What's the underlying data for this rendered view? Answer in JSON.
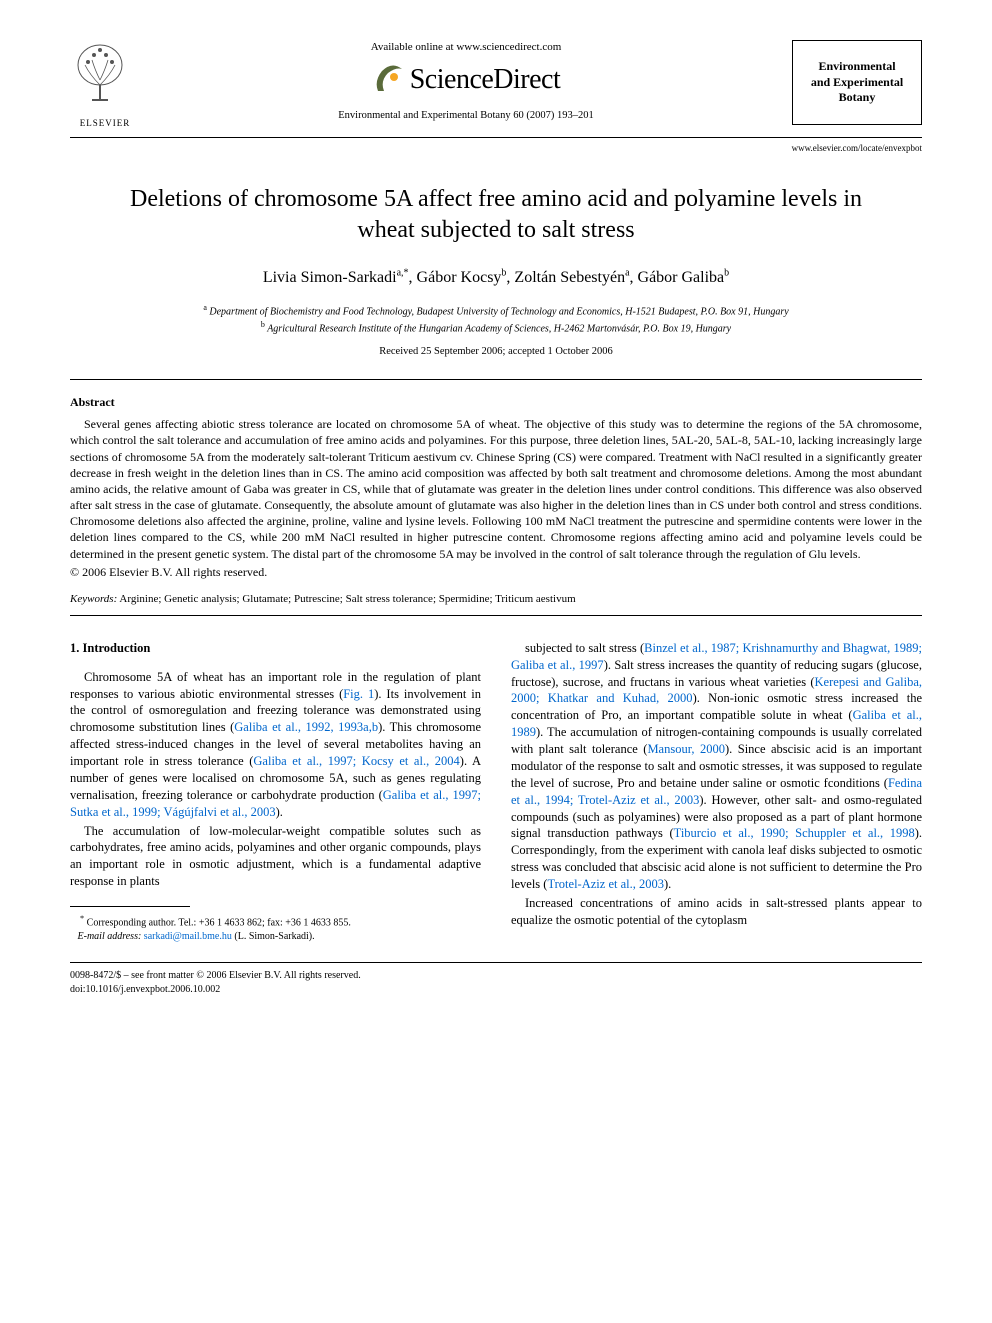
{
  "header": {
    "available_online": "Available online at www.sciencedirect.com",
    "brand": "ScienceDirect",
    "journal_ref": "Environmental and Experimental Botany 60 (2007) 193–201",
    "journal_box_line1": "Environmental",
    "journal_box_line2": "and Experimental",
    "journal_box_line3": "Botany",
    "journal_url": "www.elsevier.com/locate/envexpbot",
    "publisher": "ELSEVIER"
  },
  "article": {
    "title": "Deletions of chromosome 5A affect free amino acid and polyamine levels in wheat subjected to salt stress",
    "authors_html": "Livia Simon-Sarkadi<sup>a,*</sup>, Gábor Kocsy<sup>b</sup>, Zoltán Sebestyén<sup>a</sup>, Gábor Galiba<sup>b</sup>",
    "affil_a": "Department of Biochemistry and Food Technology, Budapest University of Technology and Economics, H-1521 Budapest, P.O. Box 91, Hungary",
    "affil_b": "Agricultural Research Institute of the Hungarian Academy of Sciences, H-2462 Martonvásár, P.O. Box 19, Hungary",
    "dates": "Received 25 September 2006; accepted 1 October 2006"
  },
  "abstract": {
    "heading": "Abstract",
    "body": "Several genes affecting abiotic stress tolerance are located on chromosome 5A of wheat. The objective of this study was to determine the regions of the 5A chromosome, which control the salt tolerance and accumulation of free amino acids and polyamines. For this purpose, three deletion lines, 5AL-20, 5AL-8, 5AL-10, lacking increasingly large sections of chromosome 5A from the moderately salt-tolerant Triticum aestivum cv. Chinese Spring (CS) were compared. Treatment with NaCl resulted in a significantly greater decrease in fresh weight in the deletion lines than in CS. The amino acid composition was affected by both salt treatment and chromosome deletions. Among the most abundant amino acids, the relative amount of Gaba was greater in CS, while that of glutamate was greater in the deletion lines under control conditions. This difference was also observed after salt stress in the case of glutamate. Consequently, the absolute amount of glutamate was also higher in the deletion lines than in CS under both control and stress conditions. Chromosome deletions also affected the arginine, proline, valine and lysine levels. Following 100 mM NaCl treatment the putrescine and spermidine contents were lower in the deletion lines compared to the CS, while 200 mM NaCl resulted in higher putrescine content. Chromosome regions affecting amino acid and polyamine levels could be determined in the present genetic system. The distal part of the chromosome 5A may be involved in the control of salt tolerance through the regulation of Glu levels.",
    "copyright": "© 2006 Elsevier B.V. All rights reserved."
  },
  "keywords": {
    "label": "Keywords:",
    "list": "Arginine; Genetic analysis; Glutamate; Putrescine; Salt stress tolerance; Spermidine; Triticum aestivum"
  },
  "body": {
    "section_heading": "1.  Introduction",
    "p1_pre": "Chromosome 5A of wheat has an important role in the regulation of plant responses to various abiotic environmental stresses (",
    "p1_ref1": "Fig. 1",
    "p1_mid1": "). Its involvement in the control of osmoregulation and freezing tolerance was demonstrated using chromosome substitution lines (",
    "p1_ref2": "Galiba et al., 1992, 1993a,b",
    "p1_mid2": "). This chromosome affected stress-induced changes in the level of several metabolites having an important role in stress tolerance (",
    "p1_ref3": "Galiba et al., 1997; Kocsy et al., 2004",
    "p1_mid3": "). A number of genes were localised on chromosome 5A, such as genes regulating vernalisation, freezing tolerance or carbohydrate production (",
    "p1_ref4": "Galiba et al., 1997; Sutka et al., 1999; Vágújfalvi et al., 2003",
    "p1_post": ").",
    "p2": "The accumulation of low-molecular-weight compatible solutes such as carbohydrates, free amino acids, polyamines and other organic compounds, plays an important role in osmotic adjustment, which is a fundamental adaptive response in plants",
    "p3_pre": "subjected to salt stress (",
    "p3_ref1": "Binzel et al., 1987; Krishnamurthy and Bhagwat, 1989; Galiba et al., 1997",
    "p3_mid1": "). Salt stress increases the quantity of reducing sugars (glucose, fructose), sucrose, and fructans in various wheat varieties (",
    "p3_ref2": "Kerepesi and Galiba, 2000; Khatkar and Kuhad, 2000",
    "p3_mid2": "). Non-ionic osmotic stress increased the concentration of Pro, an important compatible solute in wheat (",
    "p3_ref3": "Galiba et al., 1989",
    "p3_mid3": "). The accumulation of nitrogen-containing compounds is usually correlated with plant salt tolerance (",
    "p3_ref4": "Mansour, 2000",
    "p3_mid4": "). Since abscisic acid is an important modulator of the response to salt and osmotic stresses, it was supposed to regulate the level of sucrose, Pro and betaine under saline or osmotic fconditions (",
    "p3_ref5": "Fedina et al., 1994; Trotel-Aziz et al., 2003",
    "p3_mid5": "). However, other salt- and osmo-regulated compounds (such as polyamines) were also proposed as a part of plant hormone signal transduction pathways (",
    "p3_ref6": "Tiburcio et al., 1990; Schuppler et al., 1998",
    "p3_mid6": "). Correspondingly, from the experiment with canola leaf disks subjected to osmotic stress was concluded that abscisic acid alone is not sufficient to determine the Pro levels (",
    "p3_ref7": "Trotel-Aziz et al., 2003",
    "p3_post": ").",
    "p4": "Increased concentrations of amino acids in salt-stressed plants appear to equalize the osmotic potential of the cytoplasm"
  },
  "footnote": {
    "corr": "Corresponding author. Tel.: +36 1 4633 862; fax: +36 1 4633 855.",
    "email_label": "E-mail address:",
    "email": "sarkadi@mail.bme.hu",
    "email_name": "(L. Simon-Sarkadi)."
  },
  "footer": {
    "line1": "0098-8472/$ – see front matter © 2006 Elsevier B.V. All rights reserved.",
    "line2": "doi:10.1016/j.envexpbot.2006.10.002"
  },
  "colors": {
    "link": "#0066cc",
    "text": "#000000",
    "elsevier_orange": "#ff6600"
  }
}
